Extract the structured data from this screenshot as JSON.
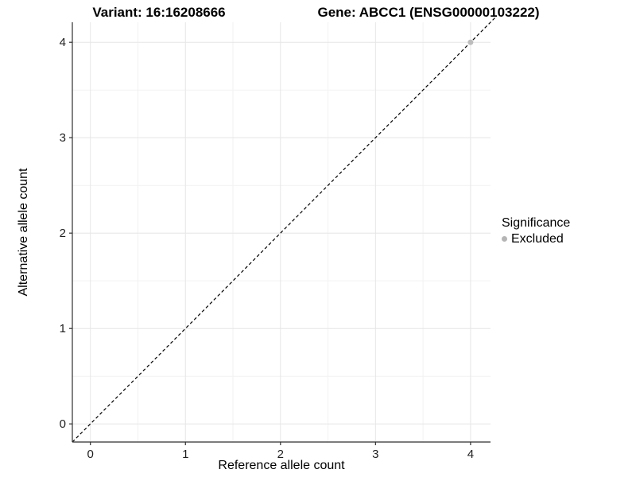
{
  "chart_data": {
    "type": "scatter",
    "title_left": "Variant: 16:16208666",
    "title_right": "Gene: ABCC1 (ENSG00000103222)",
    "xlabel": "Reference allele count",
    "ylabel": "Alternative allele count",
    "xlim": [
      -0.19,
      4.21
    ],
    "ylim": [
      -0.19,
      4.21
    ],
    "xticks": [
      0,
      1,
      2,
      3,
      4
    ],
    "yticks": [
      0,
      1,
      2,
      3,
      4
    ],
    "minor_ticks": [
      0.5,
      1.5,
      2.5,
      3.5
    ],
    "grid": true,
    "abline": {
      "slope": 1,
      "intercept": 0,
      "style": "dashed",
      "color": "#000000",
      "overshoot": 0.06
    },
    "series": [
      {
        "name": "Excluded",
        "color": "#bdbdbd",
        "points": [
          {
            "x": 4,
            "y": 4
          }
        ]
      }
    ],
    "legend": {
      "title": "Significance",
      "position": "right",
      "items": [
        {
          "label": "Excluded",
          "color": "#b5b5b5"
        }
      ]
    },
    "colors": {
      "grid_major": "#e6e6e6",
      "grid_minor": "#f2f2f2",
      "axis": "#2f2f2f",
      "tick_label": "#1f1f1f"
    }
  }
}
